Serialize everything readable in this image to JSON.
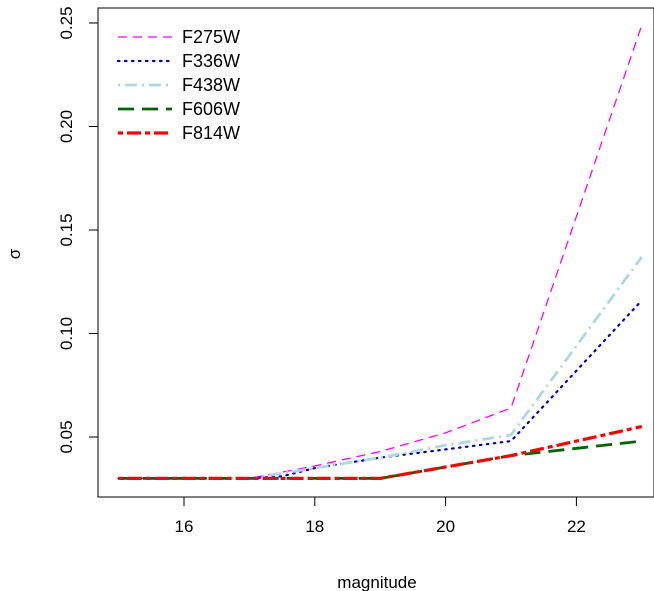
{
  "chart_data": {
    "type": "line",
    "title": "",
    "xlabel": "magnitude",
    "ylabel": "σ",
    "xlim": [
      15,
      23
    ],
    "ylim": [
      0.03,
      0.25
    ],
    "xticks": [
      16,
      18,
      20,
      22
    ],
    "yticks": [
      0.05,
      0.1,
      0.15,
      0.2,
      0.25
    ],
    "xtick_labels": [
      "16",
      "18",
      "20",
      "22"
    ],
    "ytick_labels": [
      "0.05",
      "0.10",
      "0.15",
      "0.20",
      "0.25"
    ],
    "grid": false,
    "legend_position": "top-left",
    "series": [
      {
        "name": "F275W",
        "color": "#ff00ff",
        "dash": "dashed",
        "x": [
          15,
          17,
          18,
          19,
          20,
          21,
          23
        ],
        "y": [
          0.03,
          0.03,
          0.036,
          0.043,
          0.052,
          0.064,
          0.249
        ]
      },
      {
        "name": "F336W",
        "color": "#0000cd",
        "dash": "dotted",
        "x": [
          15,
          17,
          17.5,
          18,
          19,
          20,
          21,
          23
        ],
        "y": [
          0.03,
          0.03,
          0.031,
          0.035,
          0.04,
          0.044,
          0.048,
          0.116
        ]
      },
      {
        "name": "F438W",
        "color": "#add8e6",
        "dash": "dotdash",
        "x": [
          15,
          17,
          18,
          19,
          20,
          21,
          23
        ],
        "y": [
          0.03,
          0.03,
          0.035,
          0.04,
          0.046,
          0.051,
          0.137
        ]
      },
      {
        "name": "F606W",
        "color": "#006400",
        "dash": "longdash",
        "x": [
          15,
          19,
          21,
          23
        ],
        "y": [
          0.03,
          0.03,
          0.041,
          0.048
        ]
      },
      {
        "name": "F814W",
        "color": "#ff0000",
        "dash": "twodash",
        "x": [
          15,
          19,
          21,
          23
        ],
        "y": [
          0.03,
          0.03,
          0.041,
          0.055
        ]
      }
    ]
  }
}
